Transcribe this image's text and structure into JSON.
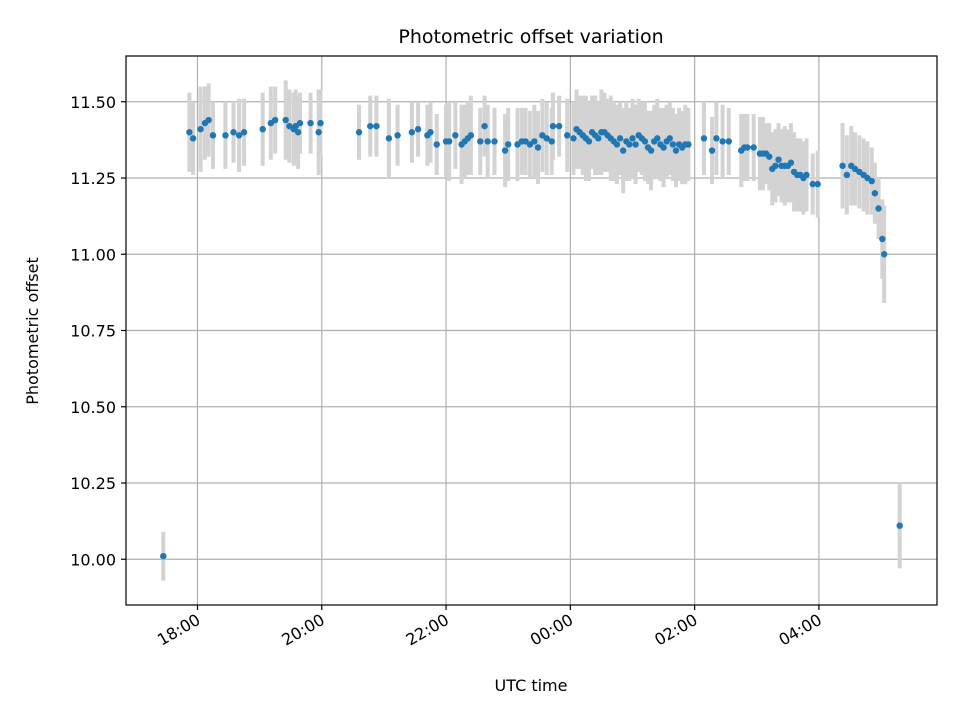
{
  "chart_data": {
    "type": "scatter",
    "title": "Photometric offset variation",
    "xlabel": "UTC time",
    "ylabel": "Photometric offset",
    "x_unit": "hours (UTC, relative to 00:00; negative = previous evening)",
    "xlim": [
      -7.15,
      5.9
    ],
    "ylim": [
      9.85,
      11.65
    ],
    "grid": true,
    "x_ticks": [
      {
        "value": -6,
        "label": "18:00"
      },
      {
        "value": -4,
        "label": "20:00"
      },
      {
        "value": -2,
        "label": "22:00"
      },
      {
        "value": 0,
        "label": "00:00"
      },
      {
        "value": 2,
        "label": "02:00"
      },
      {
        "value": 4,
        "label": "04:00"
      }
    ],
    "y_ticks": [
      {
        "value": 10.0,
        "label": "10.00"
      },
      {
        "value": 10.25,
        "label": "10.25"
      },
      {
        "value": 10.5,
        "label": "10.50"
      },
      {
        "value": 10.75,
        "label": "10.75"
      },
      {
        "value": 11.0,
        "label": "11.00"
      },
      {
        "value": 11.25,
        "label": "11.25"
      },
      {
        "value": 11.5,
        "label": "11.50"
      }
    ],
    "colors": {
      "point": "#1f77b4",
      "errorbar": "#d3d3d3",
      "grid": "#b0b0b0"
    },
    "series": [
      {
        "points": [
          [
            -6.55,
            10.01,
            0.08
          ],
          [
            -6.13,
            11.4,
            0.13
          ],
          [
            -6.07,
            11.38,
            0.12
          ],
          [
            -5.95,
            11.41,
            0.14
          ],
          [
            -5.88,
            11.43,
            0.12
          ],
          [
            -5.82,
            11.44,
            0.12
          ],
          [
            -5.75,
            11.39,
            0.11
          ],
          [
            -5.55,
            11.39,
            0.11
          ],
          [
            -5.42,
            11.4,
            0.1
          ],
          [
            -5.33,
            11.39,
            0.12
          ],
          [
            -5.25,
            11.4,
            0.11
          ],
          [
            -4.95,
            11.41,
            0.12
          ],
          [
            -4.82,
            11.43,
            0.12
          ],
          [
            -4.75,
            11.44,
            0.11
          ],
          [
            -4.58,
            11.44,
            0.13
          ],
          [
            -4.52,
            11.42,
            0.12
          ],
          [
            -4.45,
            11.41,
            0.12
          ],
          [
            -4.42,
            11.42,
            0.12
          ],
          [
            -4.38,
            11.4,
            0.12
          ],
          [
            -4.35,
            11.43,
            0.1
          ],
          [
            -4.18,
            11.43,
            0.1
          ],
          [
            -4.05,
            11.4,
            0.14
          ],
          [
            -4.02,
            11.43,
            0.11
          ],
          [
            -3.4,
            11.4,
            0.09
          ],
          [
            -3.22,
            11.42,
            0.1
          ],
          [
            -3.12,
            11.42,
            0.1
          ],
          [
            -2.92,
            11.38,
            0.13
          ],
          [
            -2.78,
            11.39,
            0.1
          ],
          [
            -2.55,
            11.4,
            0.1
          ],
          [
            -2.45,
            11.41,
            0.09
          ],
          [
            -2.3,
            11.39,
            0.1
          ],
          [
            -2.25,
            11.4,
            0.1
          ],
          [
            -2.15,
            11.36,
            0.1
          ],
          [
            -2.0,
            11.37,
            0.12
          ],
          [
            -1.95,
            11.37,
            0.13
          ],
          [
            -1.85,
            11.39,
            0.11
          ],
          [
            -1.75,
            11.36,
            0.13
          ],
          [
            -1.7,
            11.37,
            0.12
          ],
          [
            -1.65,
            11.38,
            0.12
          ],
          [
            -1.6,
            11.39,
            0.13
          ],
          [
            -1.45,
            11.37,
            0.11
          ],
          [
            -1.38,
            11.42,
            0.1
          ],
          [
            -1.33,
            11.37,
            0.12
          ],
          [
            -1.22,
            11.37,
            0.11
          ],
          [
            -1.05,
            11.34,
            0.12
          ],
          [
            -1.0,
            11.36,
            0.12
          ],
          [
            -0.85,
            11.36,
            0.12
          ],
          [
            -0.78,
            11.37,
            0.11
          ],
          [
            -0.72,
            11.37,
            0.11
          ],
          [
            -0.65,
            11.36,
            0.11
          ],
          [
            -0.58,
            11.37,
            0.12
          ],
          [
            -0.52,
            11.35,
            0.12
          ],
          [
            -0.45,
            11.39,
            0.12
          ],
          [
            -0.38,
            11.38,
            0.12
          ],
          [
            -0.3,
            11.37,
            0.11
          ],
          [
            -0.28,
            11.42,
            0.11
          ],
          [
            -0.18,
            11.42,
            0.1
          ],
          [
            -0.05,
            11.39,
            0.12
          ],
          [
            0.05,
            11.38,
            0.12
          ],
          [
            0.1,
            11.41,
            0.13
          ],
          [
            0.15,
            11.4,
            0.12
          ],
          [
            0.2,
            11.39,
            0.13
          ],
          [
            0.25,
            11.38,
            0.14
          ],
          [
            0.3,
            11.37,
            0.13
          ],
          [
            0.35,
            11.4,
            0.12
          ],
          [
            0.4,
            11.39,
            0.13
          ],
          [
            0.45,
            11.38,
            0.12
          ],
          [
            0.5,
            11.4,
            0.14
          ],
          [
            0.55,
            11.4,
            0.13
          ],
          [
            0.6,
            11.39,
            0.12
          ],
          [
            0.65,
            11.38,
            0.14
          ],
          [
            0.7,
            11.37,
            0.13
          ],
          [
            0.75,
            11.36,
            0.13
          ],
          [
            0.8,
            11.38,
            0.12
          ],
          [
            0.85,
            11.34,
            0.14
          ],
          [
            0.9,
            11.37,
            0.13
          ],
          [
            0.95,
            11.36,
            0.12
          ],
          [
            1.0,
            11.38,
            0.13
          ],
          [
            1.05,
            11.36,
            0.13
          ],
          [
            1.1,
            11.39,
            0.12
          ],
          [
            1.15,
            11.38,
            0.12
          ],
          [
            1.2,
            11.37,
            0.13
          ],
          [
            1.25,
            11.35,
            0.12
          ],
          [
            1.3,
            11.34,
            0.13
          ],
          [
            1.35,
            11.37,
            0.12
          ],
          [
            1.4,
            11.38,
            0.13
          ],
          [
            1.45,
            11.36,
            0.12
          ],
          [
            1.5,
            11.35,
            0.13
          ],
          [
            1.55,
            11.37,
            0.12
          ],
          [
            1.6,
            11.38,
            0.12
          ],
          [
            1.65,
            11.36,
            0.12
          ],
          [
            1.7,
            11.34,
            0.12
          ],
          [
            1.75,
            11.36,
            0.12
          ],
          [
            1.8,
            11.35,
            0.12
          ],
          [
            1.85,
            11.36,
            0.13
          ],
          [
            1.9,
            11.36,
            0.12
          ],
          [
            2.15,
            11.38,
            0.12
          ],
          [
            2.28,
            11.34,
            0.11
          ],
          [
            2.35,
            11.38,
            0.12
          ],
          [
            2.45,
            11.37,
            0.12
          ],
          [
            2.55,
            11.37,
            0.11
          ],
          [
            2.75,
            11.34,
            0.12
          ],
          [
            2.8,
            11.35,
            0.11
          ],
          [
            2.85,
            11.35,
            0.11
          ],
          [
            2.95,
            11.35,
            0.11
          ],
          [
            3.05,
            11.33,
            0.12
          ],
          [
            3.1,
            11.33,
            0.12
          ],
          [
            3.15,
            11.33,
            0.1
          ],
          [
            3.2,
            11.32,
            0.11
          ],
          [
            3.25,
            11.28,
            0.12
          ],
          [
            3.3,
            11.29,
            0.12
          ],
          [
            3.35,
            11.31,
            0.12
          ],
          [
            3.4,
            11.29,
            0.12
          ],
          [
            3.45,
            11.29,
            0.13
          ],
          [
            3.5,
            11.29,
            0.12
          ],
          [
            3.55,
            11.3,
            0.13
          ],
          [
            3.6,
            11.27,
            0.13
          ],
          [
            3.65,
            11.26,
            0.12
          ],
          [
            3.7,
            11.26,
            0.12
          ],
          [
            3.75,
            11.25,
            0.12
          ],
          [
            3.8,
            11.26,
            0.12
          ],
          [
            3.9,
            11.23,
            0.1
          ],
          [
            3.98,
            11.23,
            0.11
          ],
          [
            4.38,
            11.29,
            0.14
          ],
          [
            4.45,
            11.26,
            0.13
          ],
          [
            4.52,
            11.29,
            0.13
          ],
          [
            4.58,
            11.28,
            0.12
          ],
          [
            4.65,
            11.27,
            0.12
          ],
          [
            4.72,
            11.26,
            0.12
          ],
          [
            4.78,
            11.25,
            0.12
          ],
          [
            4.85,
            11.24,
            0.11
          ],
          [
            4.9,
            11.2,
            0.1
          ],
          [
            4.96,
            11.15,
            0.1
          ],
          [
            5.02,
            11.05,
            0.13
          ],
          [
            5.05,
            11.0,
            0.16
          ],
          [
            5.3,
            10.11,
            0.14
          ]
        ]
      }
    ]
  }
}
